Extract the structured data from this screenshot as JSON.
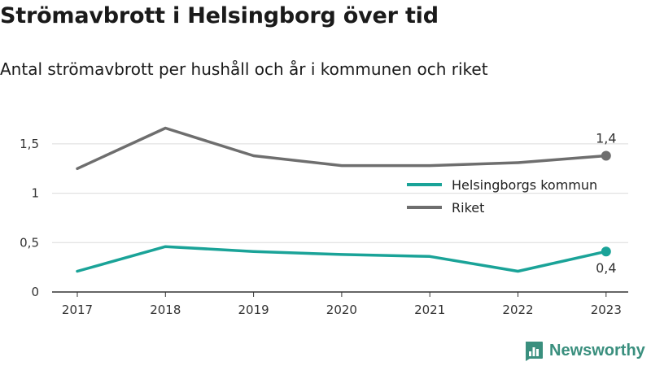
{
  "title": "Strömavbrott i Helsingborg över tid",
  "subtitle": "Antal strömavbrott per hushåll och år i kommunen och riket",
  "brand": {
    "name": "Newsworthy",
    "icon": "newsworthy-logo-icon",
    "color": "#3a8f7e"
  },
  "chart_data": {
    "type": "line",
    "x": [
      "2017",
      "2018",
      "2019",
      "2020",
      "2021",
      "2022",
      "2023"
    ],
    "series": [
      {
        "name": "Helsingborgs kommun",
        "color": "#1aa398",
        "values": [
          0.21,
          0.46,
          0.41,
          0.38,
          0.36,
          0.21,
          0.41
        ],
        "end_label": "0,4"
      },
      {
        "name": "Riket",
        "color": "#6e6e6e",
        "values": [
          1.25,
          1.66,
          1.38,
          1.28,
          1.28,
          1.31,
          1.38
        ],
        "end_label": "1,4"
      }
    ],
    "yticks": [
      0,
      0.5,
      1,
      1.5
    ],
    "ytick_labels": [
      "0",
      "0,5",
      "1",
      "1,5"
    ],
    "ylim": [
      0,
      1.75
    ],
    "grid": true,
    "legend_position": "right"
  }
}
